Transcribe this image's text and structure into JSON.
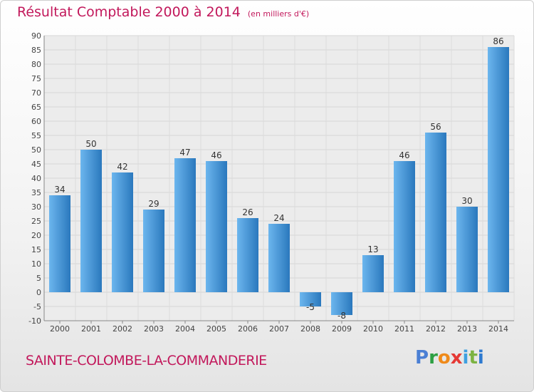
{
  "title": {
    "main": "Résultat Comptable 2000 à 2014",
    "unit": "(en milliers d'€)"
  },
  "commune": "SAINTE-COLOMBE-LA-COMMANDERIE",
  "logo": {
    "letters": [
      "P",
      "r",
      "o",
      "x",
      "i",
      "t",
      "i"
    ],
    "text": "Proxiti"
  },
  "colors": {
    "title": "#c2185b",
    "bar_light": "#6cb6ee",
    "bar_dark": "#2a78bd",
    "grid": "#d6d6d6"
  },
  "chart_data": {
    "type": "bar",
    "title": "Résultat Comptable 2000 à 2014",
    "ylabel": "en milliers d'€",
    "xlabel": "",
    "ylim": [
      -10,
      90
    ],
    "yticks": [
      -10,
      -5,
      0,
      5,
      10,
      15,
      20,
      25,
      30,
      35,
      40,
      45,
      50,
      55,
      60,
      65,
      70,
      75,
      80,
      85,
      90
    ],
    "grid": true,
    "categories": [
      "2000",
      "2001",
      "2002",
      "2003",
      "2004",
      "2005",
      "2006",
      "2007",
      "2008",
      "2009",
      "2010",
      "2011",
      "2012",
      "2013",
      "2014"
    ],
    "values": [
      34,
      50,
      42,
      29,
      47,
      46,
      26,
      24,
      -5,
      -8,
      13,
      46,
      56,
      30,
      86
    ]
  }
}
